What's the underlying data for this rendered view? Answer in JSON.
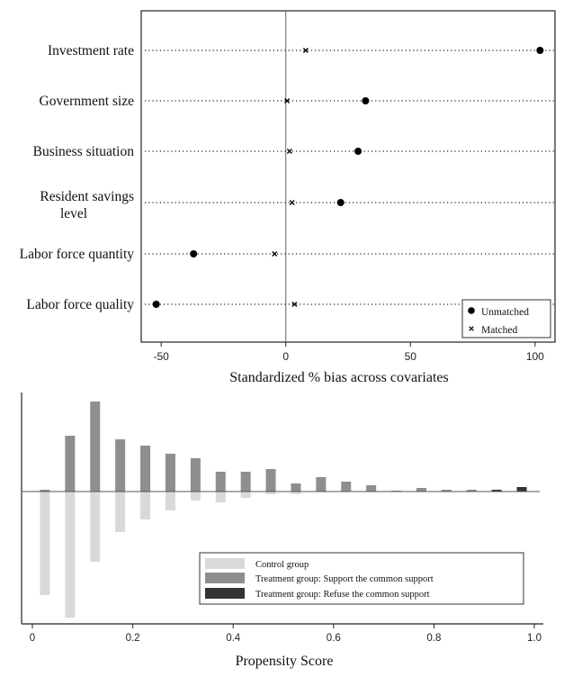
{
  "chart_data": [
    {
      "type": "scatter",
      "xlabel": "Standardized % bias across covariates",
      "xlim": [
        -58,
        108
      ],
      "x_ticks": [
        "-50",
        "0",
        "50",
        "100"
      ],
      "x_tick_values": [
        -50,
        0,
        50,
        100
      ],
      "categories": [
        "Investment rate",
        "Government size",
        "Business situation",
        "Resident savings level",
        "Labor force quantity",
        "Labor force quality"
      ],
      "category_lines": [
        [
          "Investment rate"
        ],
        [
          "Government size"
        ],
        [
          "Business situation"
        ],
        [
          "Resident savings",
          "level"
        ],
        [
          "Labor force quantity"
        ],
        [
          "Labor force quality"
        ]
      ],
      "series": [
        {
          "name": "Unmatched",
          "marker": "circle",
          "values": [
            102,
            32,
            29,
            22,
            -37,
            -52
          ]
        },
        {
          "name": "Matched",
          "marker": "x",
          "values": [
            8,
            0.5,
            1.5,
            2.5,
            -4.5,
            3.5
          ]
        }
      ],
      "zero_line": true,
      "legend_position": "bottom-right"
    },
    {
      "type": "bar",
      "xlabel": "Propensity Score",
      "xlim": [
        0,
        1
      ],
      "x_ticks": [
        "0",
        "0.2",
        "0.4",
        "0.6",
        "0.8",
        "1.0"
      ],
      "x_tick_values": [
        0,
        0.2,
        0.4,
        0.6,
        0.8,
        1.0
      ],
      "bin_centers": [
        0.025,
        0.075,
        0.125,
        0.175,
        0.225,
        0.275,
        0.325,
        0.375,
        0.425,
        0.475,
        0.525,
        0.575,
        0.625,
        0.675,
        0.725,
        0.775,
        0.825,
        0.875,
        0.925,
        0.975
      ],
      "series": [
        {
          "name": "Control group",
          "color": "#d9d9d9",
          "direction": "down",
          "values": [
            115,
            140,
            78,
            45,
            31,
            21,
            10,
            12,
            7,
            3,
            3,
            0,
            0,
            0,
            0.5,
            0,
            0,
            0,
            0,
            0
          ]
        },
        {
          "name": "Treatment group: Support the common support",
          "color": "#8e8e8e",
          "direction": "up",
          "values": [
            2,
            62,
            100,
            58,
            51,
            42,
            37,
            22,
            22,
            25,
            9,
            16,
            11,
            7,
            1,
            4,
            2,
            2,
            0,
            0
          ]
        },
        {
          "name": "Treatment group: Refuse the common support",
          "color": "#333333",
          "direction": "up",
          "values": [
            0,
            0,
            0,
            0,
            0,
            0,
            0,
            0,
            0,
            0,
            0,
            0,
            0,
            0,
            0,
            0,
            0,
            0,
            2,
            5
          ]
        }
      ],
      "legend_position": "bottom-right"
    }
  ]
}
